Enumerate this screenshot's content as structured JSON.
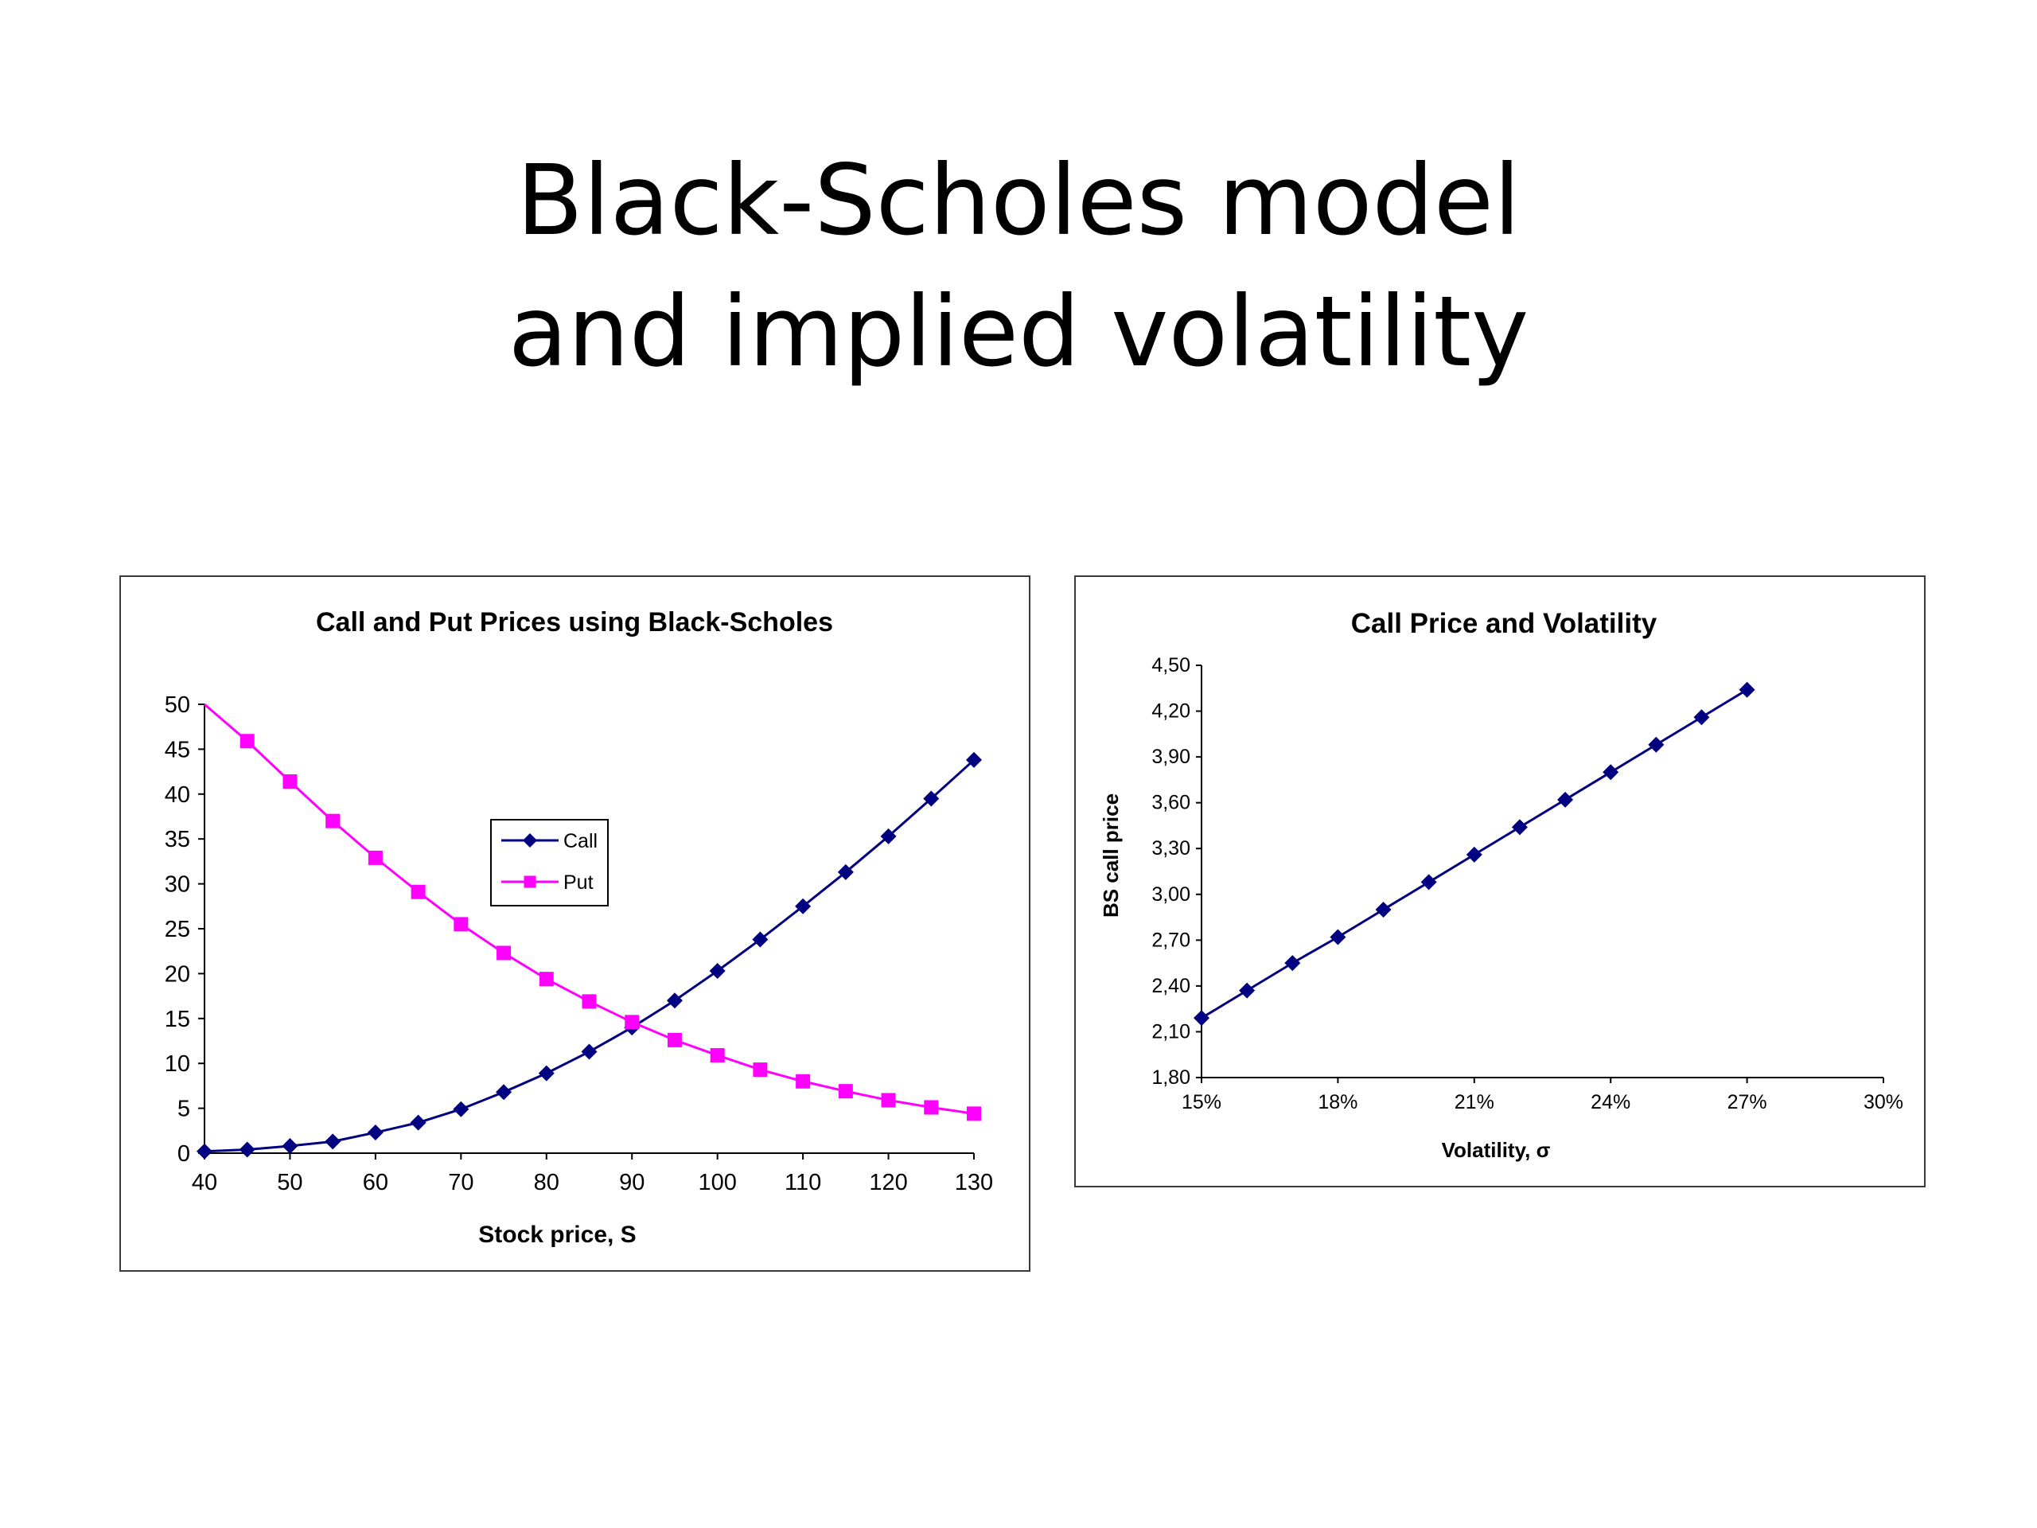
{
  "slide": {
    "title_line1": "Black-Scholes model",
    "title_line2": "and implied volatility"
  },
  "colors": {
    "call": "#000080",
    "put": "#ff00ff",
    "frame": "#3a3a3a"
  },
  "chart_data": [
    {
      "type": "line",
      "title": "Call and Put Prices using Black-Scholes",
      "xlabel": "Stock price, S",
      "ylabel": "",
      "xlim": [
        40,
        130
      ],
      "ylim": [
        0,
        50
      ],
      "x_ticks": [
        40,
        50,
        60,
        70,
        80,
        90,
        100,
        110,
        120,
        130
      ],
      "y_ticks": [
        0,
        5,
        10,
        15,
        20,
        25,
        30,
        35,
        40,
        45,
        50
      ],
      "grid": false,
      "legend": "center",
      "x": [
        40,
        45,
        50,
        55,
        60,
        65,
        70,
        75,
        80,
        85,
        90,
        95,
        100,
        105,
        110,
        115,
        120,
        125,
        130
      ],
      "series": [
        {
          "name": "Call",
          "marker": "diamond",
          "values": [
            0.2,
            0.4,
            0.8,
            1.3,
            2.3,
            3.4,
            4.9,
            6.8,
            8.9,
            11.3,
            14.0,
            17.0,
            20.3,
            23.8,
            27.5,
            31.3,
            35.3,
            39.5,
            43.8
          ]
        },
        {
          "name": "Put",
          "marker": "square",
          "values": [
            50.3,
            45.9,
            41.4,
            37.0,
            32.9,
            29.1,
            25.5,
            22.3,
            19.4,
            16.9,
            14.6,
            12.6,
            10.9,
            9.3,
            8.0,
            6.9,
            5.9,
            5.1,
            4.4
          ]
        }
      ]
    },
    {
      "type": "line",
      "title": "Call Price and Volatility",
      "xlabel": "Volatility, σ",
      "ylabel": "BS call price",
      "xlim": [
        0.15,
        0.3
      ],
      "ylim": [
        1.8,
        4.5
      ],
      "x_ticks": [
        "15%",
        "18%",
        "21%",
        "24%",
        "27%",
        "30%"
      ],
      "y_ticks": [
        "1,80",
        "2,10",
        "2,40",
        "2,70",
        "3,00",
        "3,30",
        "3,60",
        "3,90",
        "4,20",
        "4,50"
      ],
      "grid": false,
      "legend": "none",
      "x": [
        0.15,
        0.16,
        0.17,
        0.18,
        0.19,
        0.2,
        0.21,
        0.22,
        0.23,
        0.24,
        0.25,
        0.26,
        0.27
      ],
      "series": [
        {
          "marker": "diamond",
          "values": [
            2.19,
            2.37,
            2.55,
            2.72,
            2.9,
            3.08,
            3.26,
            3.44,
            3.62,
            3.8,
            3.98,
            4.16,
            4.34
          ]
        }
      ]
    }
  ]
}
